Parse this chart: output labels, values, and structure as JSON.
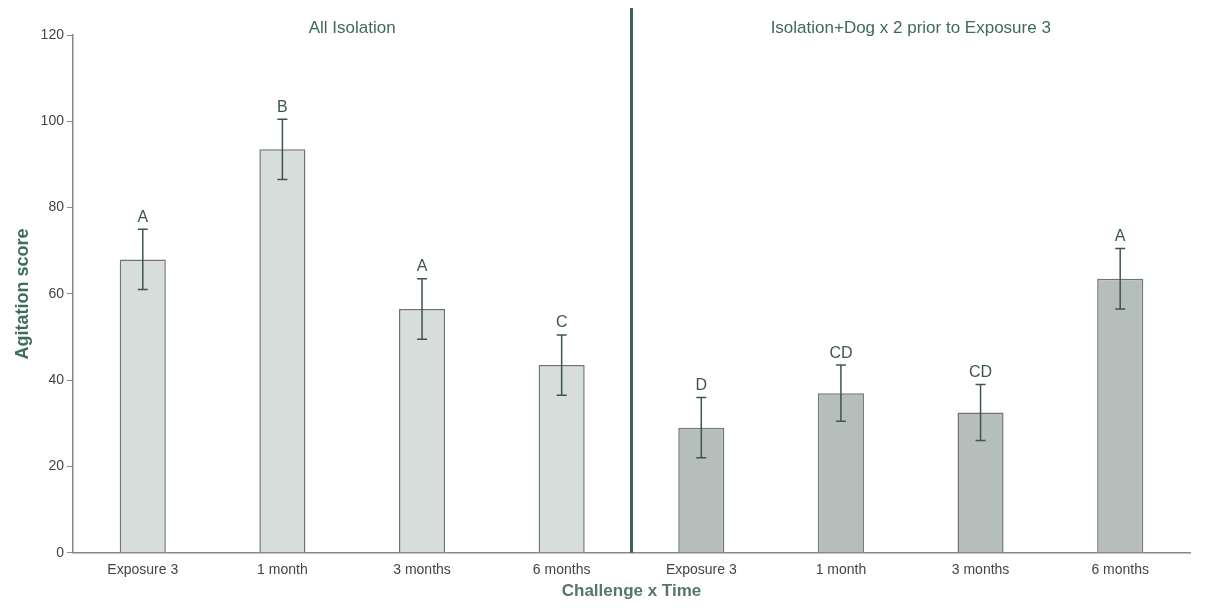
{
  "chart_data": {
    "type": "bar",
    "xlabel": "Challenge x Time",
    "ylabel": "Agitation score",
    "categories": [
      "Exposure 3",
      "1 month",
      "3 months",
      "6 months",
      "Exposure 3",
      "1 month",
      "3 months",
      "6 months"
    ],
    "values": [
      68,
      93.5,
      56.5,
      43.5,
      29,
      37,
      32.5,
      63.5
    ],
    "errors": [
      7,
      7,
      7,
      7,
      7,
      6.5,
      6.5,
      7
    ],
    "value_labels": [
      "A",
      "B",
      "A",
      "C",
      "D",
      "CD",
      "CD",
      "A"
    ],
    "colors": [
      "#d6dddb",
      "#d6dddb",
      "#d6dddb",
      "#d6dddb",
      "#b6bebb",
      "#b6bebb",
      "#b6bebb",
      "#b6bebb"
    ],
    "ylim": [
      0,
      120
    ],
    "yticks": [
      0,
      20,
      40,
      60,
      80,
      100,
      120
    ],
    "grid": false,
    "legend": false,
    "annotations": [
      "All Isolation",
      "Isolation+Dog x 2 prior to Exposure 3"
    ]
  }
}
